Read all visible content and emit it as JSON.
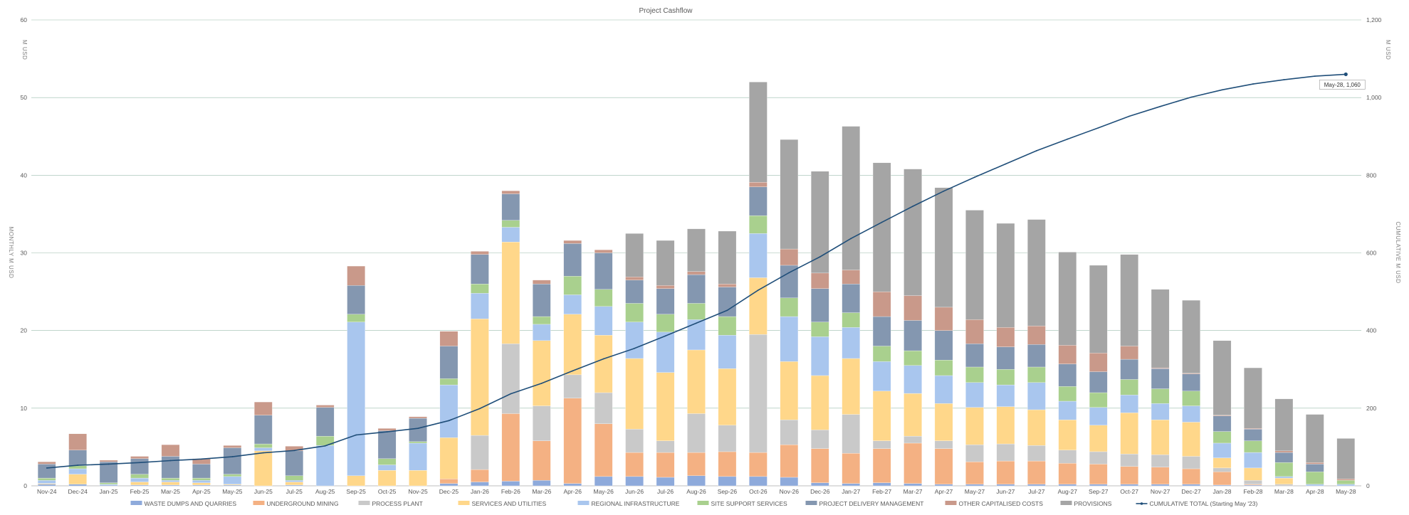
{
  "chart_data": {
    "type": "bar",
    "stacked": true,
    "title": "Project Cashflow",
    "ylabel_left": "MONTHLY M USD",
    "ylabel_right": "CUMULATIVE M USD",
    "ylabel_left_top": "M USD",
    "ylabel_right_top": "M USD",
    "ylim_left": [
      0,
      60
    ],
    "yticks_left": [
      0,
      10,
      20,
      30,
      40,
      50,
      60
    ],
    "ylim_right": [
      0,
      1200
    ],
    "yticks_right": [
      0,
      200,
      400,
      600,
      800,
      "1,000",
      "1,200"
    ],
    "grid": true,
    "legend_position": "bottom",
    "categories": [
      "Nov-24",
      "Dec-24",
      "Jan-25",
      "Feb-25",
      "Mar-25",
      "Apr-25",
      "May-25",
      "Jun-25",
      "Jul-25",
      "Aug-25",
      "Sep-25",
      "Oct-25",
      "Nov-25",
      "Dec-25",
      "Jan-26",
      "Feb-26",
      "Mar-26",
      "Apr-26",
      "May-26",
      "Jun-26",
      "Jul-26",
      "Aug-26",
      "Sep-26",
      "Oct-26",
      "Nov-26",
      "Dec-26",
      "Jan-27",
      "Feb-27",
      "Mar-27",
      "Apr-27",
      "May-27",
      "Jun-27",
      "Jul-27",
      "Aug-27",
      "Sep-27",
      "Oct-27",
      "Nov-27",
      "Dec-27",
      "Jan-28",
      "Feb-28",
      "Mar-28",
      "Apr-28",
      "May-28"
    ],
    "series": [
      {
        "name": "WASTE DUMPS AND QUARRIES",
        "color": "#8eaadb",
        "values": [
          0.2,
          0.2,
          0.1,
          0.1,
          0.1,
          0.1,
          0.1,
          0,
          0.1,
          0,
          0,
          0,
          0,
          0.3,
          0.5,
          0.6,
          0.7,
          0.3,
          1.2,
          1.2,
          1.1,
          1.3,
          1.2,
          1.2,
          1.1,
          0.4,
          0.3,
          0.4,
          0.3,
          0.2,
          0.2,
          0.2,
          0.2,
          0.2,
          0.2,
          0.2,
          0.2,
          0.2,
          0.1,
          0.1,
          0,
          0,
          0
        ]
      },
      {
        "name": "UNDERGROUND MINING",
        "color": "#f4b183",
        "values": [
          0,
          0,
          0,
          0,
          0,
          0,
          0,
          0,
          0,
          0,
          0,
          0,
          0,
          0.6,
          1.6,
          8.7,
          5.1,
          11.0,
          6.8,
          3.1,
          3.2,
          3.0,
          3.2,
          3.1,
          4.2,
          4.4,
          3.9,
          4.4,
          5.2,
          4.6,
          2.9,
          3.0,
          3.0,
          2.7,
          2.6,
          2.3,
          2.2,
          2.0,
          1.7,
          0.1,
          0,
          0,
          0
        ]
      },
      {
        "name": "PROCESS PLANT",
        "color": "#c9c9c9",
        "values": [
          0,
          0,
          0,
          0,
          0,
          0,
          0,
          0,
          0,
          0,
          0,
          0,
          0,
          0,
          4.4,
          9.0,
          4.5,
          3.0,
          4.0,
          3.0,
          1.5,
          5.0,
          3.4,
          15.2,
          3.2,
          2.4,
          5.0,
          1.0,
          0.9,
          1.0,
          2.2,
          2.2,
          2.0,
          1.7,
          1.6,
          1.6,
          1.6,
          1.6,
          0.5,
          0.5,
          0.2,
          0,
          0
        ]
      },
      {
        "name": "SERVICES AND UTILITIES",
        "color": "#ffd78a",
        "values": [
          0.1,
          1.3,
          0,
          0.4,
          0.4,
          0.3,
          0.1,
          4.5,
          0.4,
          0,
          1.3,
          2.0,
          2.0,
          5.3,
          15.0,
          13.1,
          8.4,
          7.8,
          7.4,
          9.1,
          8.8,
          8.2,
          7.3,
          7.3,
          7.5,
          7.0,
          7.2,
          6.4,
          5.5,
          4.8,
          4.8,
          4.8,
          4.6,
          3.9,
          3.4,
          5.3,
          4.5,
          4.4,
          1.3,
          1.6,
          0.8,
          0,
          0
        ]
      },
      {
        "name": "REGIONAL INFRASTRUCTURE",
        "color": "#a9c6ee",
        "values": [
          0.4,
          0.7,
          0.1,
          0.5,
          0.2,
          0.3,
          1.0,
          0.4,
          0.2,
          5.2,
          19.8,
          0.7,
          3.5,
          6.8,
          3.3,
          1.9,
          2.1,
          2.5,
          3.7,
          4.7,
          5.2,
          3.9,
          4.3,
          5.7,
          5.8,
          5.0,
          4.0,
          3.8,
          3.6,
          3.6,
          3.2,
          2.8,
          3.5,
          2.4,
          2.3,
          2.3,
          2.1,
          2.1,
          1.9,
          2.0,
          0.2,
          0.2,
          0.2
        ]
      },
      {
        "name": "SITE SUPPORT SERVICES",
        "color": "#a9d08e",
        "values": [
          0.3,
          0.4,
          0.2,
          0.5,
          0.3,
          0.3,
          0.3,
          0.5,
          0.6,
          1.2,
          1.0,
          0.8,
          0.2,
          0.8,
          1.2,
          0.9,
          1.0,
          2.4,
          2.2,
          2.4,
          2.3,
          2.1,
          2.4,
          2.3,
          2.4,
          1.9,
          1.9,
          2.0,
          1.9,
          2.0,
          2.0,
          2.0,
          2.0,
          1.9,
          1.9,
          2.0,
          1.9,
          1.9,
          1.5,
          1.5,
          1.8,
          1.6,
          0.5
        ]
      },
      {
        "name": "PROJECT DELIVERY MANAGEMENT",
        "color": "#8497b0",
        "values": [
          1.8,
          2.0,
          2.7,
          2.0,
          2.8,
          1.8,
          3.4,
          3.7,
          3.2,
          3.7,
          3.7,
          3.6,
          3.0,
          4.2,
          3.8,
          3.4,
          4.2,
          4.2,
          4.7,
          3.0,
          3.3,
          3.7,
          3.8,
          3.7,
          4.2,
          4.3,
          3.7,
          3.8,
          3.9,
          3.8,
          3.0,
          2.9,
          2.9,
          2.9,
          2.7,
          2.6,
          2.6,
          2.2,
          2.0,
          1.5,
          1.3,
          1.0,
          0
        ]
      },
      {
        "name": "OTHER CAPITALISED COSTS",
        "color": "#c9998a",
        "values": [
          0.3,
          2.1,
          0.2,
          0.3,
          1.5,
          0.7,
          0.3,
          1.7,
          0.6,
          0.3,
          2.5,
          0.3,
          0.2,
          1.9,
          0.4,
          0.4,
          0.5,
          0.4,
          0.4,
          0.4,
          0.4,
          0.4,
          0.4,
          0.6,
          2.1,
          2.0,
          1.8,
          3.2,
          3.2,
          3.0,
          3.1,
          2.5,
          2.4,
          2.4,
          2.4,
          1.7,
          0.1,
          0.1,
          0.1,
          0.1,
          0.2,
          0.2,
          0.2
        ]
      },
      {
        "name": "PROVISIONS",
        "color": "#a5a5a5",
        "values": [
          0,
          0,
          0,
          0,
          0,
          0,
          0,
          0,
          0,
          0,
          0,
          0,
          0,
          0,
          0,
          0,
          0,
          0,
          0,
          5.6,
          5.8,
          5.5,
          6.8,
          12.9,
          14.1,
          13.1,
          18.5,
          16.6,
          16.3,
          15.4,
          14.1,
          13.4,
          13.7,
          12.0,
          11.3,
          11.8,
          10.1,
          9.4,
          9.6,
          7.8,
          6.7,
          6.2,
          5.2
        ]
      },
      {
        "name": "CUMULATIVE TOTAL (Starting May '23)",
        "type": "line",
        "axis": "right",
        "color": "#1f4e79",
        "values": [
          46,
          53,
          56,
          60,
          65,
          69,
          75,
          85,
          91,
          103,
          131,
          139,
          148,
          168,
          199,
          237,
          264,
          296,
          327,
          354,
          386,
          419,
          452,
          504,
          549,
          590,
          637,
          679,
          720,
          759,
          795,
          829,
          863,
          893,
          922,
          952,
          977,
          1001,
          1020,
          1035,
          1046,
          1055,
          1060
        ]
      }
    ],
    "annotation": "May-28, 1,060"
  }
}
